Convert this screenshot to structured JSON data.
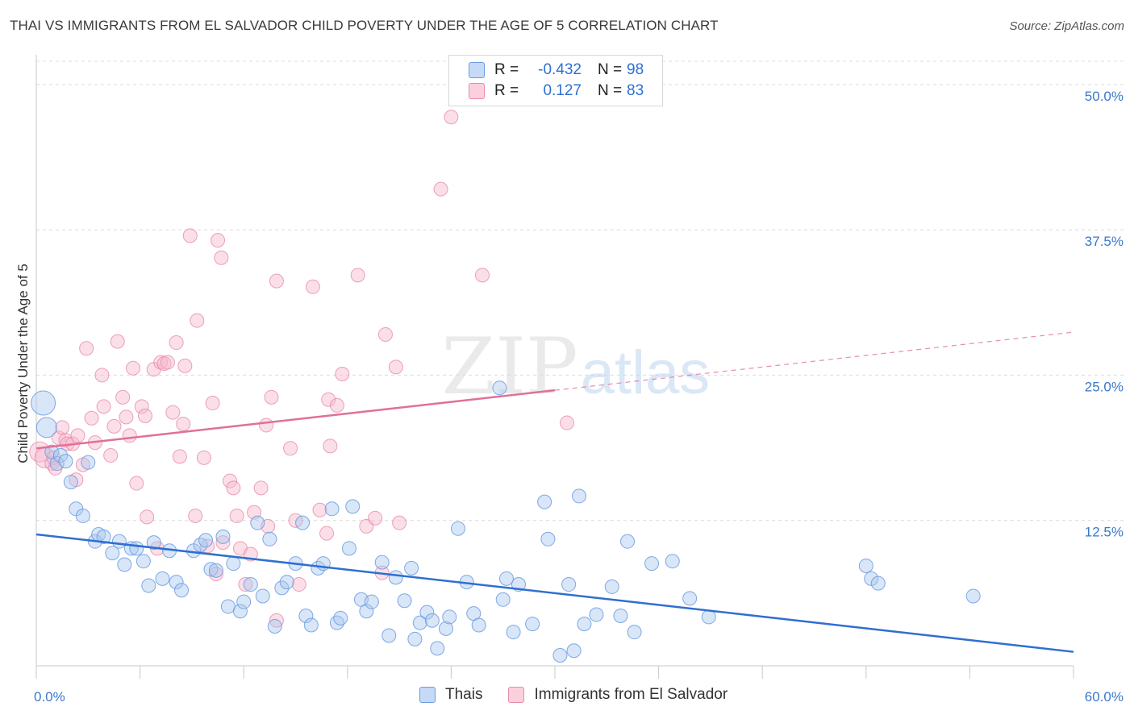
{
  "header": {
    "title": "THAI VS IMMIGRANTS FROM EL SALVADOR CHILD POVERTY UNDER THE AGE OF 5 CORRELATION CHART",
    "source": "Source: ZipAtlas.com"
  },
  "watermark": {
    "zip": "ZIP",
    "atlas": "atlas"
  },
  "legend": {
    "rows": [
      {
        "r_label": "R =",
        "r_value": "-0.432",
        "n_label": "N =",
        "n_value": "98"
      },
      {
        "r_label": "R =",
        "r_value": "0.127",
        "n_label": "N =",
        "n_value": "83"
      }
    ]
  },
  "bottom_legend": {
    "series_a": "Thais",
    "series_b": "Immigrants from El Salvador"
  },
  "colors": {
    "blue_fill": "#a9c8f0",
    "blue_stroke": "#6a9be0",
    "blue_line": "#2f6fd0",
    "pink_fill": "#f6b9cb",
    "pink_stroke": "#e88aa8",
    "pink_line": "#e0709a",
    "axis_text": "#3a78c9",
    "grid": "#dcdcdc"
  },
  "chart_data": {
    "type": "scatter",
    "title": "THAI VS IMMIGRANTS FROM EL SALVADOR CHILD POVERTY UNDER THE AGE OF 5 CORRELATION CHART",
    "xlabel": "",
    "ylabel": "Child Poverty Under the Age of 5",
    "xlim": [
      0,
      60
    ],
    "ylim": [
      0,
      52
    ],
    "x_tick_labels": [
      {
        "value": 0,
        "label": "0.0%"
      },
      {
        "value": 60,
        "label": "60.0%"
      }
    ],
    "y_tick_labels": [
      {
        "value": 12.5,
        "label": "12.5%"
      },
      {
        "value": 25,
        "label": "25.0%"
      },
      {
        "value": 37.5,
        "label": "37.5%"
      },
      {
        "value": 50,
        "label": "50.0%"
      }
    ],
    "grid": true,
    "legend_position": "top-center",
    "series": [
      {
        "name": "Thais",
        "color": "#6a9be0",
        "r": -0.432,
        "n": 98,
        "trend": {
          "x": [
            0,
            60
          ],
          "y": [
            11.3,
            1.2
          ]
        },
        "points": [
          [
            0.4,
            22.6,
            3
          ],
          [
            0.6,
            20.5,
            2
          ],
          [
            0.9,
            18.4,
            1
          ],
          [
            1.2,
            17.4,
            1
          ],
          [
            1.4,
            18.1,
            1
          ],
          [
            1.7,
            17.6,
            1
          ],
          [
            2.0,
            15.8,
            1
          ],
          [
            2.3,
            13.5,
            1
          ],
          [
            2.7,
            12.9,
            1
          ],
          [
            3.0,
            17.5,
            1
          ],
          [
            3.4,
            10.7,
            1
          ],
          [
            3.6,
            11.3,
            1
          ],
          [
            3.9,
            11.1,
            1
          ],
          [
            4.4,
            9.7,
            1
          ],
          [
            4.8,
            10.7,
            1
          ],
          [
            5.1,
            8.7,
            1
          ],
          [
            5.5,
            10.1,
            1
          ],
          [
            5.8,
            10.1,
            1
          ],
          [
            6.2,
            9.0,
            1
          ],
          [
            6.5,
            6.9,
            1
          ],
          [
            6.8,
            10.6,
            1
          ],
          [
            7.3,
            7.5,
            1
          ],
          [
            7.7,
            9.9,
            1
          ],
          [
            8.1,
            7.2,
            1
          ],
          [
            8.4,
            6.5,
            1
          ],
          [
            9.1,
            9.9,
            1
          ],
          [
            9.5,
            10.4,
            1
          ],
          [
            9.8,
            10.8,
            1
          ],
          [
            10.1,
            8.3,
            1
          ],
          [
            10.4,
            8.2,
            1
          ],
          [
            10.8,
            11.1,
            1
          ],
          [
            11.1,
            5.1,
            1
          ],
          [
            11.4,
            8.8,
            1
          ],
          [
            11.8,
            4.7,
            1
          ],
          [
            12.0,
            5.5,
            1
          ],
          [
            12.4,
            7.0,
            1
          ],
          [
            12.8,
            12.3,
            1
          ],
          [
            13.1,
            6.0,
            1
          ],
          [
            13.5,
            10.9,
            1
          ],
          [
            13.8,
            3.4,
            1
          ],
          [
            14.2,
            6.7,
            1
          ],
          [
            14.5,
            7.2,
            1
          ],
          [
            15.0,
            8.8,
            1
          ],
          [
            15.4,
            12.3,
            1
          ],
          [
            15.6,
            4.3,
            1
          ],
          [
            15.9,
            3.5,
            1
          ],
          [
            16.3,
            8.4,
            1
          ],
          [
            16.6,
            8.8,
            1
          ],
          [
            17.1,
            13.5,
            1
          ],
          [
            17.4,
            3.7,
            1
          ],
          [
            17.6,
            4.1,
            1
          ],
          [
            18.1,
            10.1,
            1
          ],
          [
            18.3,
            13.7,
            1
          ],
          [
            18.8,
            5.7,
            1
          ],
          [
            19.1,
            4.7,
            1
          ],
          [
            19.4,
            5.5,
            1
          ],
          [
            20.0,
            8.9,
            1
          ],
          [
            20.4,
            2.6,
            1
          ],
          [
            20.8,
            7.6,
            1
          ],
          [
            21.3,
            5.6,
            1
          ],
          [
            21.7,
            8.4,
            1
          ],
          [
            21.9,
            2.3,
            1
          ],
          [
            22.2,
            3.7,
            1
          ],
          [
            22.6,
            4.6,
            1
          ],
          [
            22.9,
            3.9,
            1
          ],
          [
            23.2,
            1.5,
            1
          ],
          [
            23.7,
            3.2,
            1
          ],
          [
            23.9,
            4.2,
            1
          ],
          [
            24.4,
            11.8,
            1
          ],
          [
            24.9,
            7.2,
            1
          ],
          [
            25.3,
            4.5,
            1
          ],
          [
            25.6,
            3.5,
            1
          ],
          [
            26.8,
            23.9,
            1
          ],
          [
            27.0,
            5.7,
            1
          ],
          [
            27.2,
            7.5,
            1
          ],
          [
            27.6,
            2.9,
            1
          ],
          [
            27.9,
            7.0,
            1
          ],
          [
            28.7,
            3.6,
            1
          ],
          [
            29.4,
            14.1,
            1
          ],
          [
            29.6,
            10.9,
            1
          ],
          [
            30.3,
            0.9,
            1
          ],
          [
            30.8,
            7.0,
            1
          ],
          [
            31.1,
            1.3,
            1
          ],
          [
            31.4,
            14.6,
            1
          ],
          [
            31.7,
            3.6,
            1
          ],
          [
            32.4,
            4.4,
            1
          ],
          [
            33.3,
            6.8,
            1
          ],
          [
            33.8,
            4.3,
            1
          ],
          [
            34.2,
            10.7,
            1
          ],
          [
            34.6,
            2.9,
            1
          ],
          [
            35.6,
            8.8,
            1
          ],
          [
            36.8,
            9.0,
            1
          ],
          [
            37.8,
            5.8,
            1
          ],
          [
            38.9,
            4.2,
            1
          ],
          [
            48.0,
            8.6,
            1
          ],
          [
            48.3,
            7.5,
            1
          ],
          [
            48.7,
            7.1,
            1
          ],
          [
            54.2,
            6.0,
            1
          ]
        ]
      },
      {
        "name": "Immigrants from El Salvador",
        "color": "#e88aa8",
        "r": 0.127,
        "n": 83,
        "trend": {
          "x": [
            0,
            30
          ],
          "y": [
            18.7,
            23.7
          ]
        },
        "trend_extension": {
          "x": [
            30,
            60
          ],
          "y": [
            23.7,
            28.7
          ]
        },
        "points": [
          [
            0.2,
            18.4,
            2
          ],
          [
            0.5,
            17.9,
            2
          ],
          [
            0.9,
            17.4,
            1
          ],
          [
            1.0,
            17.9,
            1
          ],
          [
            1.1,
            17.0,
            1
          ],
          [
            1.3,
            19.6,
            1
          ],
          [
            1.5,
            20.5,
            1
          ],
          [
            1.7,
            19.4,
            1
          ],
          [
            1.8,
            19.1,
            1
          ],
          [
            2.1,
            19.1,
            1
          ],
          [
            2.3,
            16.0,
            1
          ],
          [
            2.4,
            19.8,
            1
          ],
          [
            2.7,
            17.3,
            1
          ],
          [
            2.9,
            27.3,
            1
          ],
          [
            3.2,
            21.3,
            1
          ],
          [
            3.4,
            19.2,
            1
          ],
          [
            3.8,
            25.0,
            1
          ],
          [
            3.9,
            22.3,
            1
          ],
          [
            4.3,
            18.1,
            1
          ],
          [
            4.5,
            20.6,
            1
          ],
          [
            4.7,
            27.9,
            1
          ],
          [
            5.0,
            23.1,
            1
          ],
          [
            5.2,
            21.4,
            1
          ],
          [
            5.4,
            19.8,
            1
          ],
          [
            5.6,
            25.6,
            1
          ],
          [
            5.8,
            15.7,
            1
          ],
          [
            6.1,
            22.3,
            1
          ],
          [
            6.3,
            21.5,
            1
          ],
          [
            6.4,
            12.8,
            1
          ],
          [
            6.8,
            25.5,
            1
          ],
          [
            7.0,
            10.1,
            1
          ],
          [
            7.2,
            26.1,
            1
          ],
          [
            7.4,
            26.0,
            1
          ],
          [
            7.6,
            26.1,
            1
          ],
          [
            7.9,
            21.8,
            1
          ],
          [
            8.1,
            27.8,
            1
          ],
          [
            8.3,
            18.0,
            1
          ],
          [
            8.5,
            20.8,
            1
          ],
          [
            8.6,
            25.8,
            1
          ],
          [
            8.9,
            37.0,
            1
          ],
          [
            9.2,
            12.9,
            1
          ],
          [
            9.3,
            29.7,
            1
          ],
          [
            9.7,
            17.9,
            1
          ],
          [
            9.9,
            10.3,
            1
          ],
          [
            10.2,
            22.6,
            1
          ],
          [
            10.4,
            7.9,
            1
          ],
          [
            10.5,
            36.6,
            1
          ],
          [
            10.7,
            35.1,
            1
          ],
          [
            10.8,
            10.6,
            1
          ],
          [
            11.2,
            15.9,
            1
          ],
          [
            11.4,
            15.3,
            1
          ],
          [
            11.6,
            12.9,
            1
          ],
          [
            11.8,
            10.1,
            1
          ],
          [
            12.1,
            7.0,
            1
          ],
          [
            12.4,
            9.6,
            1
          ],
          [
            12.6,
            13.2,
            1
          ],
          [
            13.0,
            15.3,
            1
          ],
          [
            13.3,
            20.7,
            1
          ],
          [
            13.4,
            12.0,
            1
          ],
          [
            13.6,
            23.1,
            1
          ],
          [
            13.9,
            33.1,
            1
          ],
          [
            13.9,
            3.9,
            1
          ],
          [
            14.7,
            18.7,
            1
          ],
          [
            15.0,
            12.5,
            1
          ],
          [
            15.2,
            7.0,
            1
          ],
          [
            16.0,
            32.6,
            1
          ],
          [
            16.4,
            13.4,
            1
          ],
          [
            16.8,
            11.4,
            1
          ],
          [
            16.9,
            22.9,
            1
          ],
          [
            17.0,
            18.9,
            1
          ],
          [
            17.4,
            22.4,
            1
          ],
          [
            17.7,
            25.1,
            1
          ],
          [
            18.6,
            33.6,
            1
          ],
          [
            19.1,
            12.0,
            1
          ],
          [
            19.6,
            12.7,
            1
          ],
          [
            20.0,
            8.0,
            1
          ],
          [
            20.2,
            28.5,
            1
          ],
          [
            20.8,
            25.7,
            1
          ],
          [
            21.0,
            12.3,
            1
          ],
          [
            23.4,
            41.0,
            1
          ],
          [
            24.0,
            47.2,
            1
          ],
          [
            25.8,
            33.6,
            1
          ],
          [
            30.7,
            20.9,
            1
          ]
        ]
      }
    ]
  }
}
